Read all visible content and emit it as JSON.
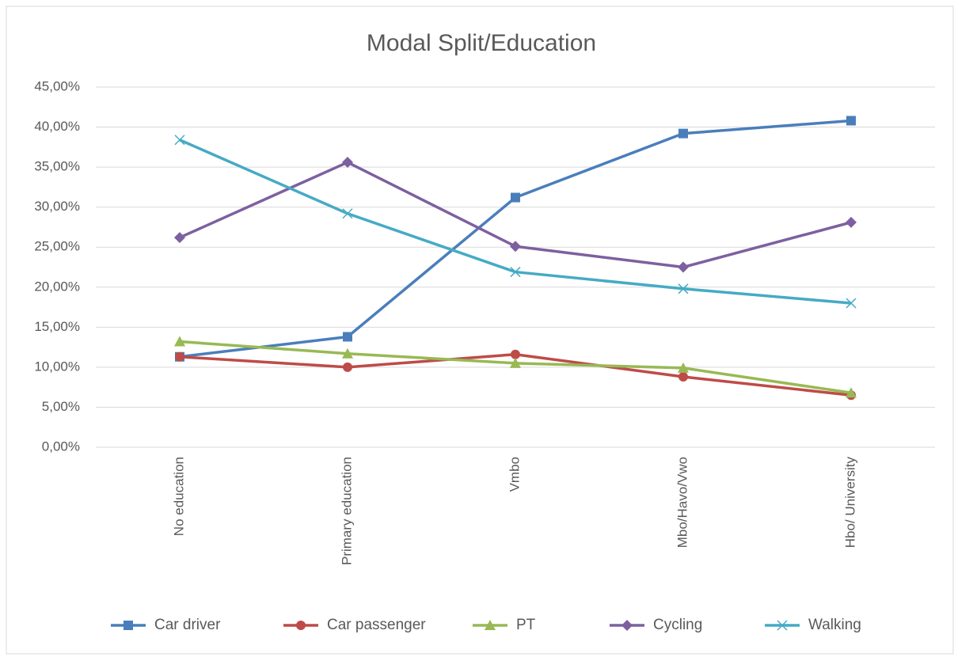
{
  "chart_data": {
    "type": "line",
    "title": "Modal Split/Education",
    "categories": [
      "No education",
      "Primary education",
      "Vmbo",
      "Mbo/Havo/Vwo",
      "Hbo/ University"
    ],
    "series": [
      {
        "name": "Car driver",
        "color": "#4a7ebb",
        "marker": "square",
        "values": [
          11.3,
          13.8,
          31.2,
          39.2,
          40.8
        ]
      },
      {
        "name": "Car passenger",
        "color": "#be4b48",
        "marker": "circle",
        "values": [
          11.3,
          10.0,
          11.6,
          8.8,
          6.5
        ]
      },
      {
        "name": "PT",
        "color": "#98b954",
        "marker": "triangle",
        "values": [
          13.2,
          11.7,
          10.5,
          9.9,
          6.8
        ]
      },
      {
        "name": "Cycling",
        "color": "#7d60a0",
        "marker": "diamond",
        "values": [
          26.2,
          35.6,
          25.1,
          22.5,
          28.1
        ]
      },
      {
        "name": "Walking",
        "color": "#46aac5",
        "marker": "x",
        "values": [
          38.4,
          29.2,
          21.9,
          19.8,
          18.0
        ]
      }
    ],
    "ylim": [
      0,
      45
    ],
    "yticks": [
      {
        "value": 0,
        "label": "0,00%"
      },
      {
        "value": 5,
        "label": "5,00%"
      },
      {
        "value": 10,
        "label": "10,00%"
      },
      {
        "value": 15,
        "label": "15,00%"
      },
      {
        "value": 20,
        "label": "20,00%"
      },
      {
        "value": 25,
        "label": "25,00%"
      },
      {
        "value": 30,
        "label": "30,00%"
      },
      {
        "value": 35,
        "label": "35,00%"
      },
      {
        "value": 40,
        "label": "40,00%"
      },
      {
        "value": 45,
        "label": "45,00%"
      }
    ],
    "grid": true,
    "legend": "bottom"
  }
}
